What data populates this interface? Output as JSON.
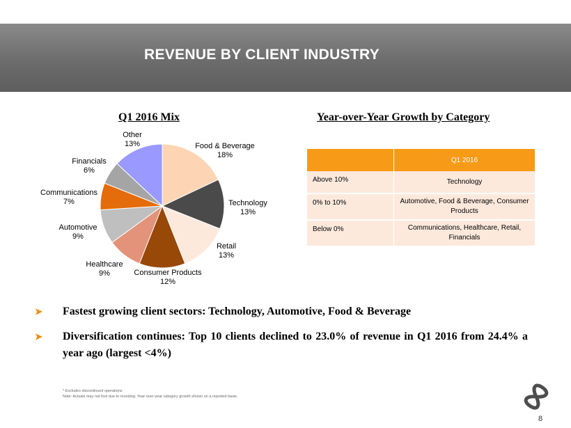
{
  "title": "REVENUE BY CLIENT INDUSTRY",
  "chart_data": {
    "type": "pie",
    "title": "Q1 2016 Mix",
    "slices": [
      {
        "label": "Food & Beverage",
        "pct": "18%",
        "value": 18,
        "color": "#fdd5b4"
      },
      {
        "label": "Technology",
        "pct": "13%",
        "value": 13,
        "color": "#4a4a4a"
      },
      {
        "label": "Retail",
        "pct": "13%",
        "value": 13,
        "color": "#fde9dc"
      },
      {
        "label": "Consumer Products",
        "pct": "12%",
        "value": 12,
        "color": "#984807"
      },
      {
        "label": "Healthcare",
        "pct": "9%",
        "value": 9,
        "color": "#e2937a"
      },
      {
        "label": "Automotive",
        "pct": "9%",
        "value": 9,
        "color": "#bfbfbf"
      },
      {
        "label": "Communications",
        "pct": "7%",
        "value": 7,
        "color": "#e46c0a"
      },
      {
        "label": "Financials",
        "pct": "6%",
        "value": 6,
        "color": "#a5a5a5"
      },
      {
        "label": "Other",
        "pct": "13%",
        "value": 13,
        "color": "#9999ff"
      }
    ]
  },
  "growth": {
    "title": "Year-over-Year Growth by Category",
    "header": "Q1 2016",
    "rows": [
      {
        "category": "Above 10%",
        "sectors": "Technology"
      },
      {
        "category": "0% to 10%",
        "sectors": "Automotive, Food & Beverage, Consumer Products"
      },
      {
        "category": "Below 0%",
        "sectors": "Communications, Healthcare, Retail, Financials"
      }
    ]
  },
  "bullets": [
    "Fastest growing client sectors: Technology, Automotive, Food & Beverage",
    "Diversification continues: Top 10 clients declined to 23.0% of revenue in Q1 2016 from 24.4% a year ago (largest <4%)"
  ],
  "footnotes": [
    "* Excludes discontinued operations",
    "Note: Actuals may not foot due to rounding. Year-over-year category growth shown on a reported basis."
  ],
  "page_number": "8",
  "colors": {
    "accent": "#f79a18",
    "arrow": "#f08a00",
    "banner": "#6c6c6c"
  },
  "icons": {
    "bullet": "arrow-bullet-icon",
    "logo": "infinity-logo-icon"
  }
}
